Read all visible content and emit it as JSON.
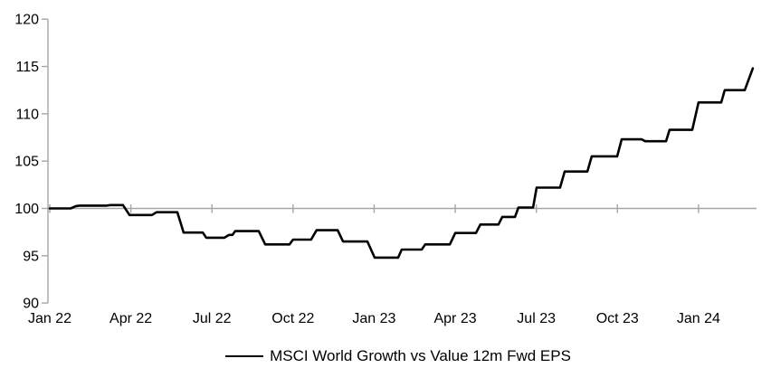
{
  "chart_data": {
    "type": "line",
    "title": "",
    "legend": {
      "position": "bottom",
      "entries": [
        "MSCI World Growth vs Value 12m Fwd EPS"
      ]
    },
    "series": [
      {
        "name": "MSCI World Growth vs Value 12m Fwd EPS",
        "color": "#000000",
        "x_unit": "months since Jan 2022",
        "points": [
          [
            0,
            100.0
          ],
          [
            0.77,
            100.0
          ],
          [
            0.97,
            100.25
          ],
          [
            1.1,
            100.3
          ],
          [
            2.11,
            100.3
          ],
          [
            2.24,
            100.35
          ],
          [
            2.71,
            100.35
          ],
          [
            2.95,
            99.3
          ],
          [
            3.78,
            99.3
          ],
          [
            3.95,
            99.6
          ],
          [
            4.72,
            99.6
          ],
          [
            4.95,
            97.45
          ],
          [
            5.66,
            97.45
          ],
          [
            5.79,
            96.9
          ],
          [
            6.46,
            96.9
          ],
          [
            6.63,
            97.2
          ],
          [
            6.76,
            97.2
          ],
          [
            6.86,
            97.6
          ],
          [
            7.73,
            97.6
          ],
          [
            7.97,
            96.2
          ],
          [
            8.87,
            96.2
          ],
          [
            9.0,
            96.7
          ],
          [
            9.67,
            96.7
          ],
          [
            9.87,
            97.7
          ],
          [
            10.65,
            97.7
          ],
          [
            10.85,
            96.5
          ],
          [
            11.75,
            96.5
          ],
          [
            12.02,
            94.8
          ],
          [
            12.89,
            94.8
          ],
          [
            13.02,
            95.65
          ],
          [
            13.76,
            95.65
          ],
          [
            13.89,
            96.2
          ],
          [
            14.8,
            96.2
          ],
          [
            15.0,
            97.4
          ],
          [
            15.77,
            97.4
          ],
          [
            15.93,
            98.3
          ],
          [
            16.6,
            98.3
          ],
          [
            16.74,
            99.1
          ],
          [
            17.21,
            99.1
          ],
          [
            17.34,
            100.1
          ],
          [
            17.88,
            100.1
          ],
          [
            18.01,
            102.2
          ],
          [
            18.88,
            102.2
          ],
          [
            19.05,
            103.9
          ],
          [
            19.89,
            103.9
          ],
          [
            20.05,
            105.5
          ],
          [
            20.99,
            105.5
          ],
          [
            21.16,
            107.3
          ],
          [
            21.9,
            107.3
          ],
          [
            22.03,
            107.1
          ],
          [
            22.8,
            107.1
          ],
          [
            22.93,
            108.3
          ],
          [
            23.77,
            108.3
          ],
          [
            24.0,
            111.2
          ],
          [
            24.84,
            111.2
          ],
          [
            24.97,
            112.5
          ],
          [
            25.71,
            112.5
          ],
          [
            26.01,
            114.8
          ]
        ]
      }
    ],
    "x_axis": {
      "range_months": [
        0,
        26.15
      ],
      "tick_months": [
        0,
        3,
        6,
        9,
        12,
        15,
        18,
        21,
        24
      ],
      "tick_labels": [
        "Jan 22",
        "Apr 22",
        "Jul 22",
        "Oct 22",
        "Jan 23",
        "Apr 23",
        "Jul 23",
        "Oct 23",
        "Jan 24"
      ],
      "labels_position": "low"
    },
    "y_axis": {
      "range": [
        90,
        120
      ],
      "tick_step": 5,
      "tick_values": [
        120,
        115,
        110,
        105,
        100,
        95,
        90
      ]
    },
    "reference_line": {
      "value": 100,
      "color": "#a6a6a6"
    },
    "axis_color": "#a6a6a6",
    "text_color": "#000000",
    "background_color": "#ffffff",
    "grid": false
  }
}
